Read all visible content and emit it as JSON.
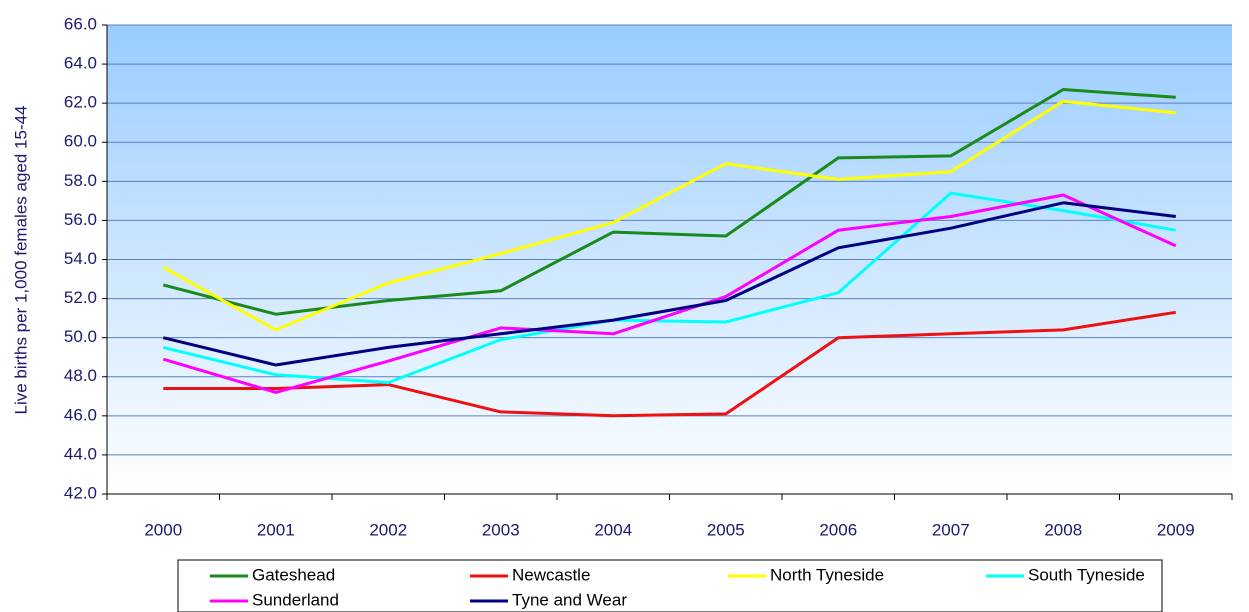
{
  "chart_data": {
    "type": "line",
    "y_label": "Live births per 1,000 females aged 15-44",
    "categories": [
      "2000",
      "2001",
      "2002",
      "2003",
      "2004",
      "2005",
      "2006",
      "2007",
      "2008",
      "2009"
    ],
    "series": [
      {
        "name": "Gateshead",
        "color": "#1a8a1a",
        "values": [
          52.7,
          51.2,
          51.9,
          52.4,
          55.4,
          55.2,
          59.2,
          59.3,
          62.7,
          62.3
        ]
      },
      {
        "name": "Newcastle",
        "color": "#ee1111",
        "values": [
          47.4,
          47.4,
          47.6,
          46.2,
          46.0,
          46.1,
          50.0,
          50.2,
          50.4,
          51.3
        ]
      },
      {
        "name": "North Tyneside",
        "color": "#ffff00",
        "values": [
          53.6,
          50.4,
          52.8,
          54.3,
          55.9,
          58.9,
          58.1,
          58.5,
          62.1,
          61.5
        ]
      },
      {
        "name": "South Tyneside",
        "color": "#00ffff",
        "values": [
          49.5,
          48.1,
          47.7,
          49.9,
          50.9,
          50.8,
          52.3,
          57.4,
          56.5,
          55.5
        ]
      },
      {
        "name": "Sunderland",
        "color": "#ff00ff",
        "values": [
          48.9,
          47.2,
          48.8,
          50.5,
          50.2,
          52.1,
          55.5,
          56.2,
          57.3,
          54.7
        ]
      },
      {
        "name": "Tyne and Wear",
        "color": "#000080",
        "values": [
          50.0,
          48.6,
          49.5,
          50.2,
          50.9,
          51.9,
          54.6,
          55.6,
          56.9,
          56.2
        ]
      }
    ],
    "ylim": [
      42,
      66
    ],
    "yticks": [
      {
        "value": 42,
        "label": "42.0"
      },
      {
        "value": 44,
        "label": "44.0"
      },
      {
        "value": 46,
        "label": "46.0"
      },
      {
        "value": 48,
        "label": "48.0"
      },
      {
        "value": 50,
        "label": "50.0"
      },
      {
        "value": 52,
        "label": "52.0"
      },
      {
        "value": 54,
        "label": "54.0"
      },
      {
        "value": 56,
        "label": "56.0"
      },
      {
        "value": 58,
        "label": "58.0"
      },
      {
        "value": 60,
        "label": "60.0"
      },
      {
        "value": 62,
        "label": "62.0"
      },
      {
        "value": 64,
        "label": "64.0"
      },
      {
        "value": 66,
        "label": "66.0"
      }
    ],
    "grid": true
  }
}
